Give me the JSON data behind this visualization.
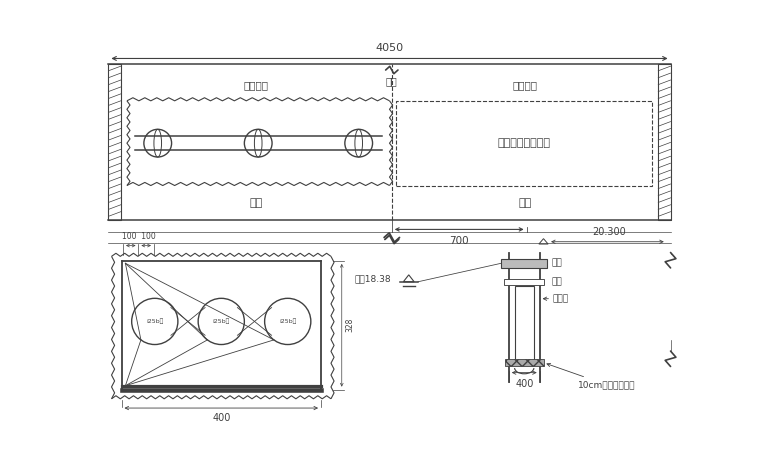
{
  "bg_color": "#ffffff",
  "line_color": "#404040",
  "title_4050": "4050",
  "dim_700": "700",
  "dim_20300": "20.300",
  "dim_400": "400",
  "label_18_38": "水标18.38",
  "label_dao": "便道",
  "label_zuodao": "左桥",
  "label_youdao": "右桥",
  "label_qidao_left": "栈桥平台",
  "label_qidao_right": "栈桥平台",
  "label_yougong": "右桥围堰施工区域",
  "label_zhicheng": "支撑",
  "label_weian": "围囹",
  "label_gangban": "钢板桩",
  "label_10cm": "10cm厚封底混凝土",
  "label_100": "100  100",
  "label_328": "328",
  "label_400b": "400",
  "label_i25b_left": "i25b槽",
  "label_i25b_mid": "i25b槽",
  "label_i25b_right": "i25b槽"
}
